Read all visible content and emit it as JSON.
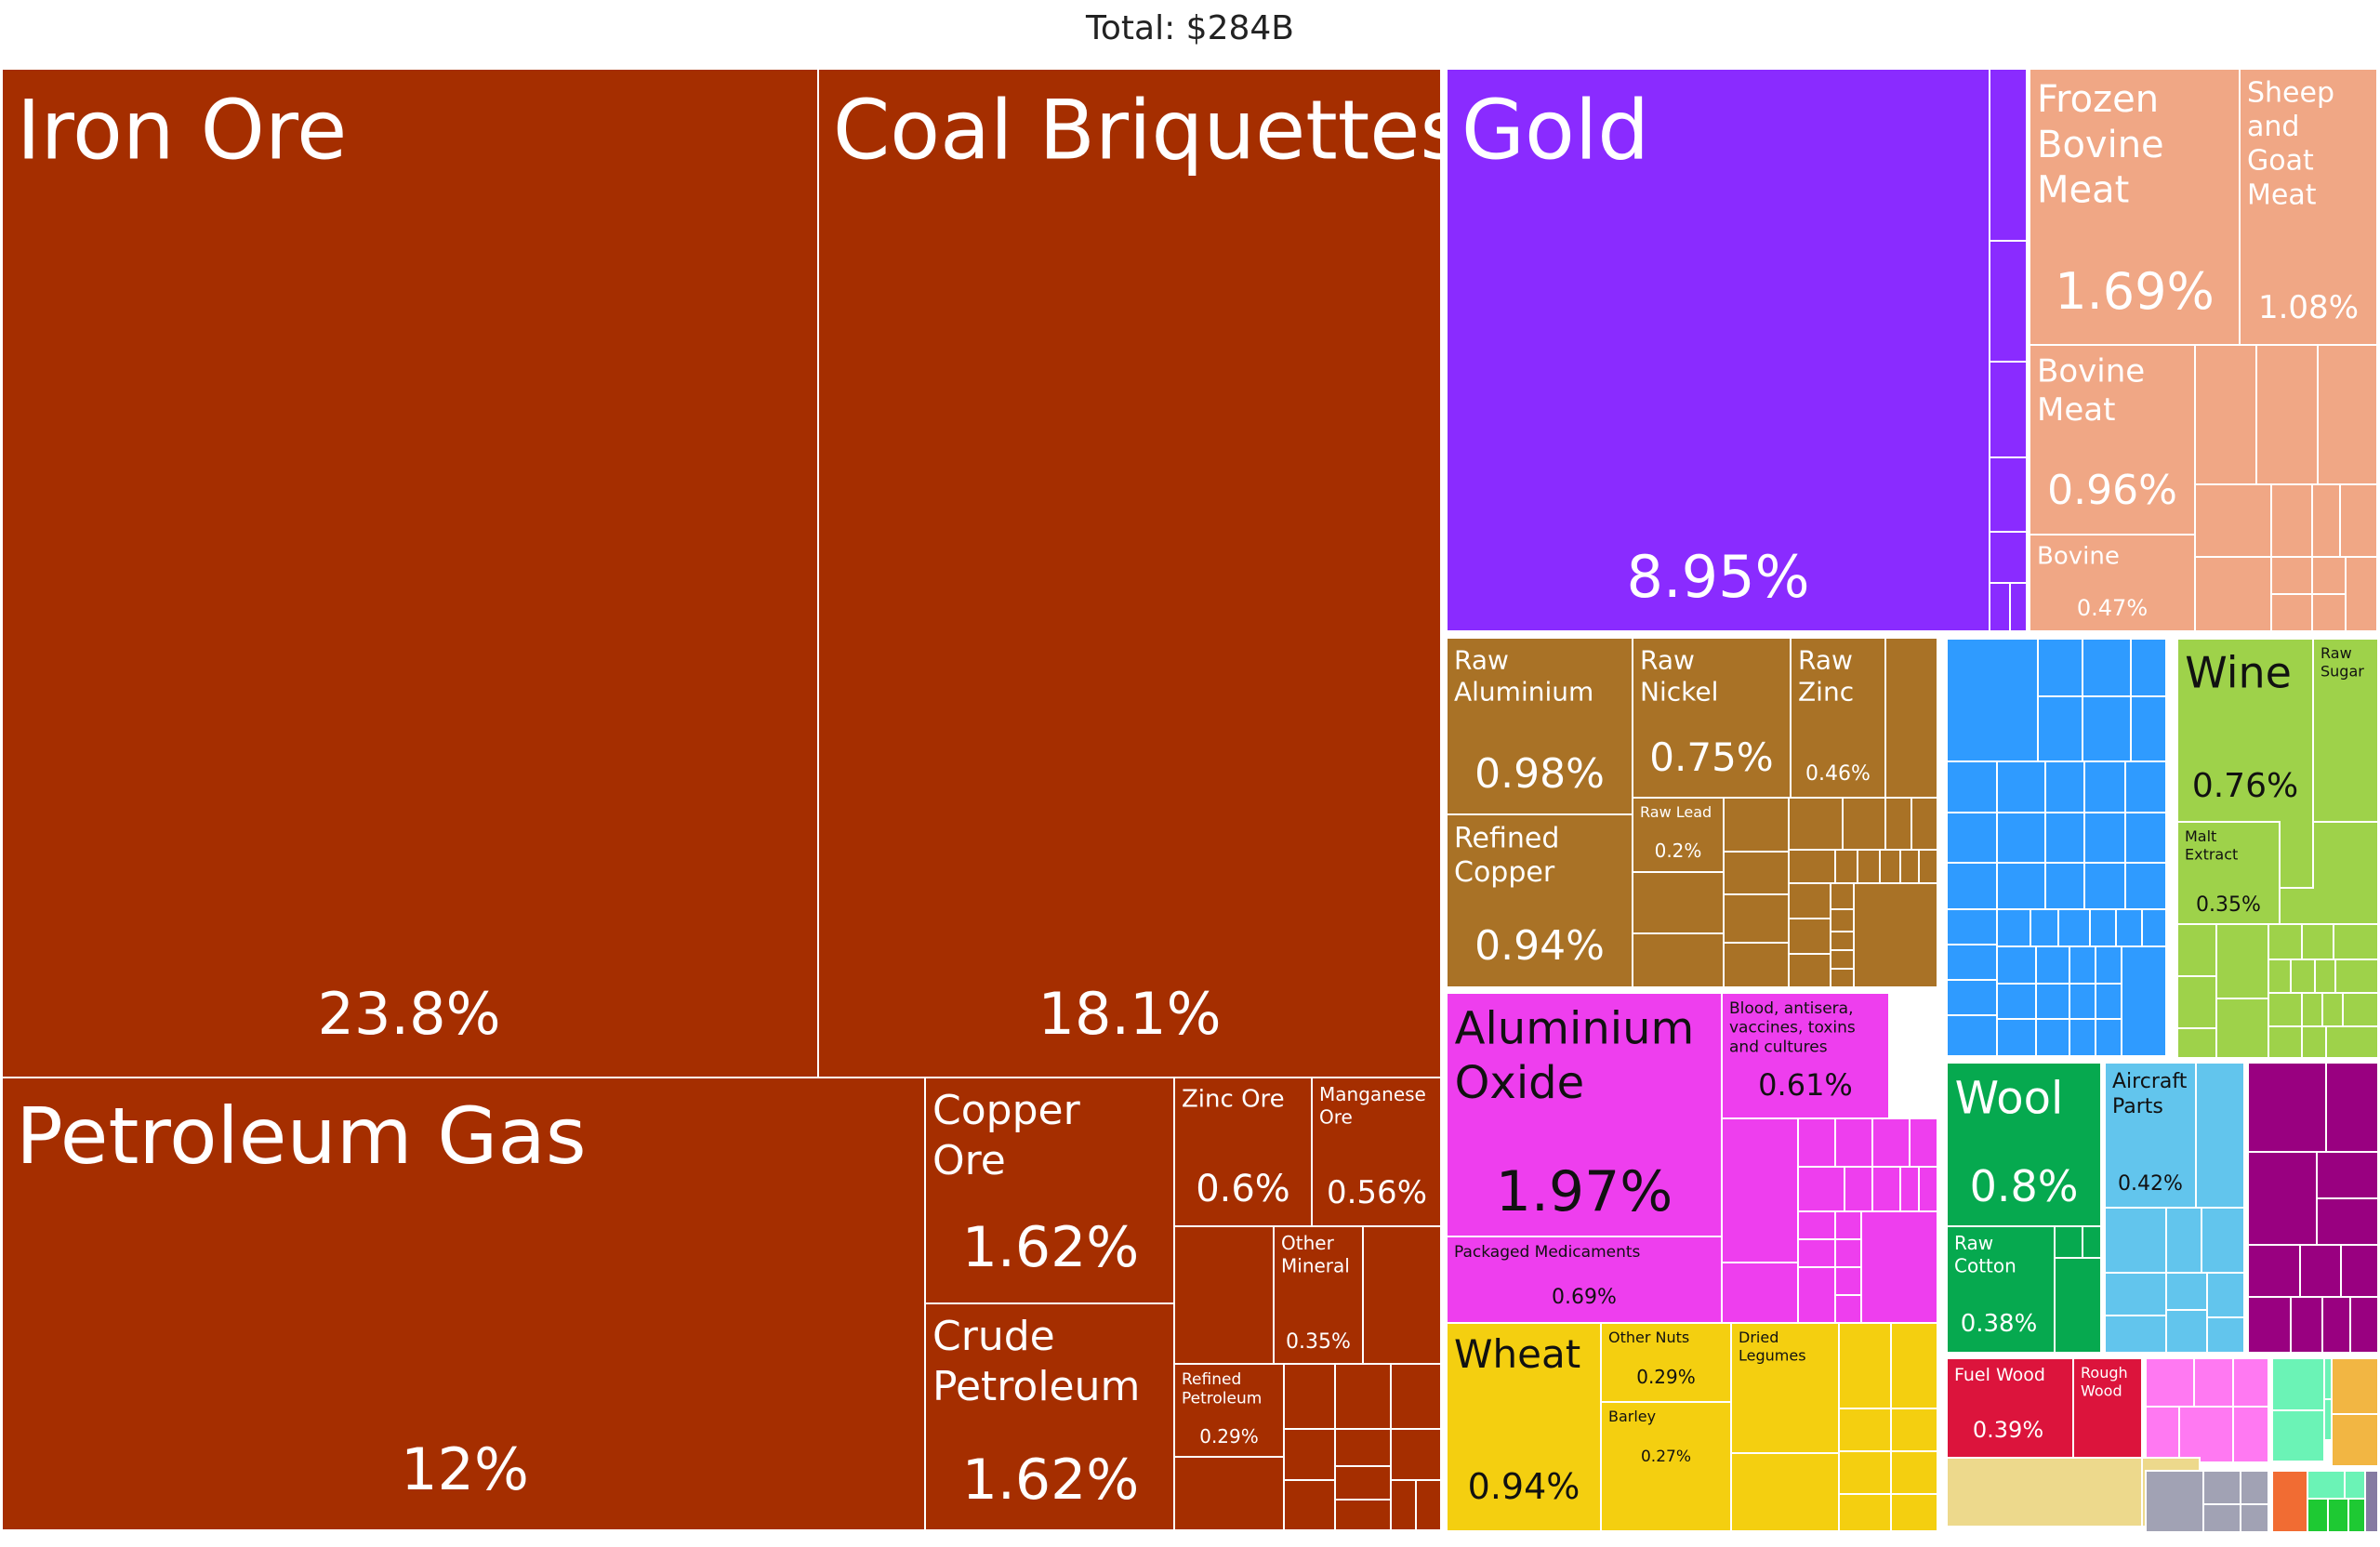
{
  "chart_data": {
    "type": "treemap",
    "title": "Total: $284B",
    "colors": {
      "minerals": "#A52E00",
      "precious_metals": "#8A2BFF",
      "animal_products": "#F0A785",
      "metals": "#A97226",
      "chemicals": "#EE3EEE",
      "vegetable_products": "#F4CF10",
      "machines": "#2F9BFF",
      "foodstuffs": "#9ED24A",
      "animal_hides": "#06A94F",
      "transportation": "#62C5ED",
      "textiles": "#990080",
      "paper_goods": "#DC143C",
      "misc_pink": "#FF79F2",
      "misc_tan": "#EDD98C",
      "misc_grey": "#A1A2B4",
      "misc_green": "#6BF3B6",
      "misc_gold": "#F2B643",
      "misc_orange": "#F16C33",
      "misc_bright": "#1EC933",
      "misc_violet": "#857BA2"
    },
    "tiles": [
      {
        "label": "Iron Ore",
        "value": "23.8%",
        "group": "minerals"
      },
      {
        "label": "Coal Briquettes",
        "value": "18.1%",
        "group": "minerals"
      },
      {
        "label": "Petroleum Gas",
        "value": "12%",
        "group": "minerals"
      },
      {
        "label": "Copper Ore",
        "value": "1.62%",
        "group": "minerals"
      },
      {
        "label": "Crude Petroleum",
        "value": "1.62%",
        "group": "minerals"
      },
      {
        "label": "Zinc Ore",
        "value": "0.6%",
        "group": "minerals"
      },
      {
        "label": "Manganese Ore",
        "value": "0.56%",
        "group": "minerals"
      },
      {
        "label": "Other Mineral",
        "value": "0.35%",
        "group": "minerals"
      },
      {
        "label": "Refined Petroleum",
        "value": "0.29%",
        "group": "minerals"
      },
      {
        "label": "Gold",
        "value": "8.95%",
        "group": "precious_metals"
      },
      {
        "label": "Frozen Bovine Meat",
        "value": "1.69%",
        "group": "animal_products"
      },
      {
        "label": "Sheep and Goat Meat",
        "value": "1.08%",
        "group": "animal_products"
      },
      {
        "label": "Bovine Meat",
        "value": "0.96%",
        "group": "animal_products"
      },
      {
        "label": "Bovine",
        "value": "0.47%",
        "group": "animal_products"
      },
      {
        "label": "Raw Aluminium",
        "value": "0.98%",
        "group": "metals"
      },
      {
        "label": "Raw Nickel",
        "value": "0.75%",
        "group": "metals"
      },
      {
        "label": "Raw Zinc",
        "value": "0.46%",
        "group": "metals"
      },
      {
        "label": "Refined Copper",
        "value": "0.94%",
        "group": "metals"
      },
      {
        "label": "Raw Lead",
        "value": "0.2%",
        "group": "metals"
      },
      {
        "label": "Aluminium Oxide",
        "value": "1.97%",
        "group": "chemicals"
      },
      {
        "label": "Blood, antisera, vaccines, toxins and cultures",
        "value": "0.61%",
        "group": "chemicals"
      },
      {
        "label": "Packaged Medicaments",
        "value": "0.69%",
        "group": "chemicals"
      },
      {
        "label": "Wheat",
        "value": "0.94%",
        "group": "vegetable_products"
      },
      {
        "label": "Other Nuts",
        "value": "0.29%",
        "group": "vegetable_products"
      },
      {
        "label": "Barley",
        "value": "0.27%",
        "group": "vegetable_products"
      },
      {
        "label": "Dried Legumes",
        "value": "",
        "group": "vegetable_products"
      },
      {
        "label": "Wine",
        "value": "0.76%",
        "group": "foodstuffs"
      },
      {
        "label": "Raw Sugar",
        "value": "",
        "group": "foodstuffs"
      },
      {
        "label": "Malt Extract",
        "value": "0.35%",
        "group": "foodstuffs"
      },
      {
        "label": "Wool",
        "value": "0.8%",
        "group": "animal_hides"
      },
      {
        "label": "Raw Cotton",
        "value": "0.38%",
        "group": "animal_hides"
      },
      {
        "label": "Aircraft Parts",
        "value": "0.42%",
        "group": "transportation"
      },
      {
        "label": "Fuel Wood",
        "value": "0.39%",
        "group": "paper_goods"
      },
      {
        "label": "Rough Wood",
        "value": "",
        "group": "paper_goods"
      }
    ]
  }
}
